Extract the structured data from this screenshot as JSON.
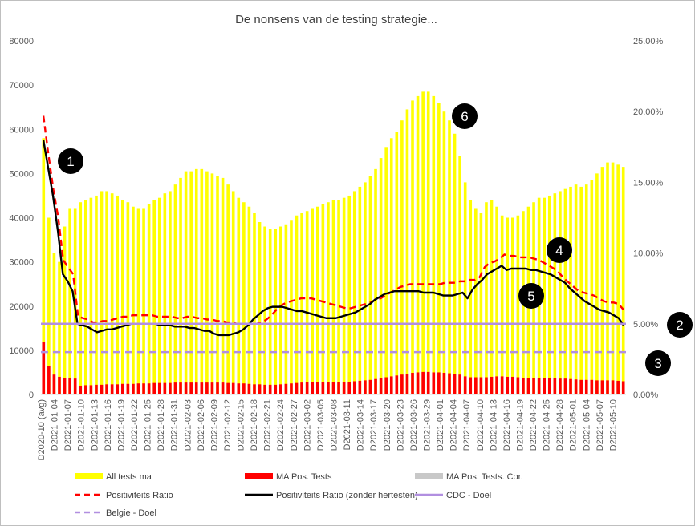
{
  "chart_data": {
    "type": "bar",
    "title": "De nonsens van de testing strategie...",
    "y_left": {
      "min": 0,
      "max": 80000,
      "ticks": [
        "0",
        "10000",
        "20000",
        "30000",
        "40000",
        "50000",
        "60000",
        "70000",
        "80000"
      ]
    },
    "y_right": {
      "min": 0,
      "max": 25,
      "ticks": [
        "0.00%",
        "5.00%",
        "10.00%",
        "15.00%",
        "20.00%",
        "25.00%"
      ]
    },
    "x_tick_labels": [
      "D2020-10 (avg)",
      "D2021-01-04",
      "D2021-01-07",
      "D2021-01-10",
      "D2021-01-13",
      "D2021-01-16",
      "D2021-01-19",
      "D2021-01-22",
      "D2021-01-25",
      "D2021-01-28",
      "D2021-01-31",
      "D2021-02-03",
      "D2021-02-06",
      "D2021-02-09",
      "D2021-02-12",
      "D2021-02-15",
      "D2021-02-18",
      "D2021-02-21",
      "D2021-02-24",
      "D2021-02-27",
      "D2021-03-02",
      "D2021-03-05",
      "D2021-03-08",
      "D2021-03-11",
      "D2021-03-14",
      "D2021-03-17",
      "D2021-03-20",
      "D2021-03-23",
      "D2021-03-26",
      "D2021-03-29",
      "D2021-04-01",
      "D2021-04-04",
      "D2021-04-07",
      "D2021-04-10",
      "D2021-04-13",
      "D2021-04-16",
      "D2021-04-19",
      "D2021-04-22",
      "D2021-04-25",
      "D2021-04-28",
      "D2021-05-01",
      "D2021-05-04",
      "D2021-05-07",
      "D2021-05-10"
    ],
    "legend": [
      {
        "label": "All tests ma",
        "kind": "box",
        "color": "#FFFF00"
      },
      {
        "label": "MA Pos. Tests",
        "kind": "box",
        "color": "#FF0000"
      },
      {
        "label": "MA Pos. Tests. Cor.",
        "kind": "box",
        "color": "#C8C8C8"
      },
      {
        "label": "Positiviteits Ratio",
        "kind": "dash",
        "color": "#FF0000"
      },
      {
        "label": "Positiviteits Ratio (zonder hertesten)",
        "kind": "solid",
        "color": "#000000"
      },
      {
        "label": "CDC - Doel",
        "kind": "solid",
        "color": "#B18FE0"
      },
      {
        "label": "Belgie - Doel",
        "kind": "dash",
        "color": "#B18FE0"
      }
    ],
    "series": [
      {
        "name": "All tests ma",
        "axis": "left",
        "type": "bar",
        "color": "#FFFF00",
        "values": [
          58000,
          40000,
          32000,
          30000,
          38000,
          42000,
          42000,
          43500,
          44000,
          44500,
          45000,
          46000,
          46000,
          45500,
          45000,
          44000,
          43500,
          42500,
          42000,
          42000,
          43000,
          44000,
          44500,
          45500,
          46000,
          47500,
          49000,
          50500,
          50500,
          51000,
          51000,
          50500,
          50000,
          49500,
          49000,
          47500,
          46000,
          44500,
          43500,
          42500,
          41000,
          39000,
          38000,
          37500,
          37500,
          38000,
          38500,
          39500,
          40500,
          41000,
          41500,
          42000,
          42500,
          43000,
          43500,
          44000,
          44000,
          44500,
          45000,
          46000,
          47000,
          48000,
          49500,
          51000,
          53500,
          56000,
          58000,
          59500,
          62000,
          64500,
          66500,
          67500,
          68500,
          68500,
          67500,
          66000,
          64000,
          62000,
          59000,
          54000,
          48000,
          44000,
          42000,
          41000,
          43500,
          44000,
          42500,
          40500,
          40000,
          40000,
          40500,
          41500,
          42500,
          43500,
          44500,
          44500,
          45000,
          45500,
          46000,
          46500,
          47000,
          47500,
          47000,
          47500,
          48500,
          50000,
          51500,
          52500,
          52500,
          52000,
          51500
        ],
        "labels_visible": false
      },
      {
        "name": "MA Pos. Tests",
        "axis": "left",
        "type": "bar",
        "color": "#FF0000",
        "values": [
          11800,
          6500,
          4500,
          4000,
          3800,
          3700,
          3600,
          2000,
          2100,
          2100,
          2200,
          2200,
          2300,
          2300,
          2300,
          2400,
          2400,
          2400,
          2500,
          2500,
          2500,
          2600,
          2600,
          2600,
          2600,
          2700,
          2700,
          2700,
          2700,
          2700,
          2700,
          2700,
          2700,
          2700,
          2700,
          2600,
          2600,
          2500,
          2500,
          2400,
          2300,
          2300,
          2200,
          2200,
          2200,
          2300,
          2400,
          2500,
          2600,
          2700,
          2800,
          2800,
          2800,
          2800,
          2800,
          2800,
          2800,
          2800,
          2900,
          3000,
          3100,
          3200,
          3300,
          3500,
          3700,
          3900,
          4100,
          4300,
          4500,
          4700,
          4900,
          5000,
          5100,
          5100,
          5000,
          5000,
          4900,
          4800,
          4700,
          4500,
          4100,
          3900,
          3900,
          3900,
          3900,
          4000,
          4100,
          4100,
          4000,
          4000,
          3900,
          3800,
          3800,
          3800,
          3800,
          3800,
          3700,
          3700,
          3600,
          3600,
          3500,
          3400,
          3300,
          3300,
          3300,
          3200,
          3200,
          3200,
          3200,
          3100,
          3000
        ]
      },
      {
        "name": "MA Pos. Tests. Cor.",
        "axis": "left",
        "type": "bar",
        "color": "#C8C8C8",
        "values": [
          0,
          0,
          0,
          0,
          0,
          0,
          0,
          0,
          0,
          0,
          0,
          0,
          0,
          0,
          0,
          0,
          0,
          0,
          0,
          0,
          0,
          0,
          0,
          0,
          0,
          0,
          0,
          0,
          0,
          0,
          0,
          0,
          0,
          0,
          0,
          0,
          0,
          0,
          0,
          0,
          0,
          0,
          0,
          0,
          0,
          0,
          0,
          0,
          0,
          0,
          0,
          0,
          0,
          0,
          0,
          0,
          0,
          0,
          0,
          0,
          0,
          0,
          0,
          0,
          0,
          0,
          0,
          0,
          0,
          0,
          0,
          0,
          0,
          0,
          0,
          0,
          0,
          0,
          0,
          0,
          0,
          0,
          0,
          0,
          0,
          0,
          0,
          0,
          0,
          0,
          0,
          0,
          0,
          0,
          0,
          0,
          0,
          0,
          0,
          0,
          0,
          0,
          0,
          0,
          0,
          0,
          0,
          0,
          0,
          0,
          0
        ]
      },
      {
        "name": "Positiviteits Ratio",
        "axis": "right",
        "type": "line",
        "style": "dash",
        "color": "#FF0000",
        "values": [
          19.7,
          17.0,
          14.5,
          12.5,
          9.5,
          9.0,
          8.5,
          5.5,
          5.4,
          5.3,
          5.1,
          5.1,
          5.2,
          5.2,
          5.3,
          5.4,
          5.5,
          5.5,
          5.6,
          5.6,
          5.6,
          5.6,
          5.6,
          5.5,
          5.5,
          5.5,
          5.5,
          5.4,
          5.4,
          5.5,
          5.5,
          5.4,
          5.4,
          5.3,
          5.3,
          5.2,
          5.2,
          5.1,
          5.1,
          5.0,
          5.0,
          5.0,
          5.0,
          5.0,
          5.1,
          5.3,
          5.6,
          6.0,
          6.3,
          6.5,
          6.6,
          6.7,
          6.8,
          6.8,
          6.8,
          6.7,
          6.6,
          6.5,
          6.4,
          6.3,
          6.2,
          6.1,
          6.1,
          6.2,
          6.3,
          6.4,
          6.5,
          6.7,
          6.8,
          7.0,
          7.2,
          7.4,
          7.6,
          7.7,
          7.8,
          7.8,
          7.8,
          7.8,
          7.8,
          7.8,
          7.8,
          7.9,
          7.9,
          7.9,
          8.0,
          8.0,
          8.1,
          8.1,
          8.3,
          9.0,
          9.3,
          9.4,
          9.6,
          9.9,
          9.8,
          9.8,
          9.7,
          9.7,
          9.7,
          9.6,
          9.5,
          9.3,
          9.1,
          8.9,
          8.6,
          8.2,
          7.9,
          7.6,
          7.3,
          7.2,
          7.1,
          7.0,
          6.8,
          6.6,
          6.5,
          6.5,
          6.4,
          6.0
        ]
      },
      {
        "name": "Positiviteits Ratio (zonder hertesten)",
        "axis": "right",
        "type": "line",
        "style": "solid",
        "color": "#000000",
        "values": [
          18.0,
          16.0,
          14.0,
          11.5,
          8.5,
          8.0,
          7.3,
          5.0,
          4.9,
          4.8,
          4.6,
          4.4,
          4.5,
          4.6,
          4.6,
          4.7,
          4.8,
          4.9,
          5.0,
          5.0,
          5.0,
          5.0,
          5.0,
          5.0,
          4.9,
          4.9,
          4.9,
          4.8,
          4.8,
          4.8,
          4.7,
          4.7,
          4.6,
          4.5,
          4.5,
          4.3,
          4.2,
          4.2,
          4.2,
          4.3,
          4.4,
          4.6,
          4.9,
          5.3,
          5.6,
          5.9,
          6.1,
          6.2,
          6.2,
          6.2,
          6.1,
          6.0,
          5.9,
          5.9,
          5.8,
          5.7,
          5.6,
          5.5,
          5.4,
          5.4,
          5.4,
          5.5,
          5.6,
          5.7,
          5.8,
          6.0,
          6.2,
          6.4,
          6.7,
          6.9,
          7.1,
          7.2,
          7.3,
          7.3,
          7.3,
          7.3,
          7.3,
          7.3,
          7.2,
          7.2,
          7.2,
          7.1,
          7.0,
          7.0,
          7.0,
          7.1,
          7.2,
          6.8,
          7.4,
          7.8,
          8.1,
          8.5,
          8.7,
          8.9,
          9.1,
          8.8,
          8.9,
          8.9,
          8.9,
          8.9,
          8.8,
          8.8,
          8.7,
          8.6,
          8.5,
          8.3,
          8.1,
          7.9,
          7.5,
          7.2,
          6.9,
          6.6,
          6.4,
          6.2,
          6.0,
          5.9,
          5.8,
          5.6,
          5.4,
          4.9
        ]
      },
      {
        "name": "CDC - Doel",
        "axis": "right",
        "type": "line",
        "style": "solid",
        "color": "#B18FE0",
        "constant": 5.0
      },
      {
        "name": "Belgie - Doel",
        "axis": "right",
        "type": "line",
        "style": "dash",
        "color": "#B18FE0",
        "constant": 3.0
      }
    ],
    "annotations": [
      {
        "text": "1",
        "near": "start of series, around 54000 on left axis"
      },
      {
        "text": "2",
        "near": "right edge at CDC - Doel line"
      },
      {
        "text": "3",
        "near": "right edge at Belgie - Doel line"
      },
      {
        "text": "4",
        "near": "Positiviteits Ratio around D2021-04-25"
      },
      {
        "text": "5",
        "near": "Positiviteits Ratio (zonder hertesten) around D2021-04-22"
      },
      {
        "text": "6",
        "near": "peak of All tests ma around D2021-03-29"
      }
    ],
    "grid": false,
    "legend_position": "bottom"
  }
}
